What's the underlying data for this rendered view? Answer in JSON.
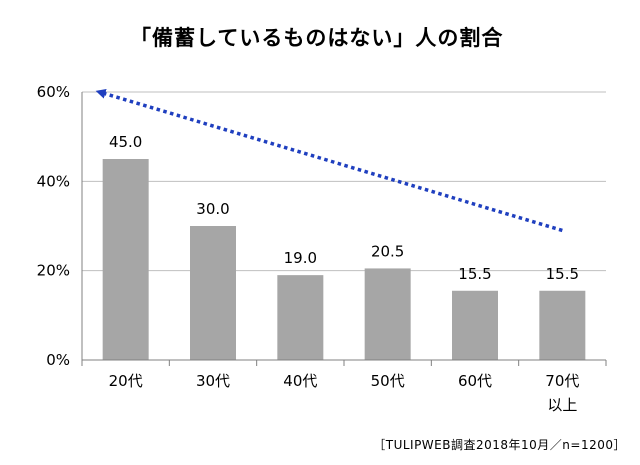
{
  "chart_data": {
    "type": "bar",
    "title": "「備蓄しているものはない」人の割合",
    "source": "［TULIPWEB調査2018年10月／n=1200］",
    "categories": [
      [
        "20代"
      ],
      [
        "30代"
      ],
      [
        "40代"
      ],
      [
        "50代"
      ],
      [
        "60代"
      ],
      [
        "70代",
        "以上"
      ]
    ],
    "values": [
      45.0,
      30.0,
      19.0,
      20.5,
      15.5,
      15.5
    ],
    "value_labels": [
      "45.0",
      "30.0",
      "19.0",
      "20.5",
      "15.5",
      "15.5"
    ],
    "ylim": [
      0,
      60
    ],
    "yticks": [
      0,
      20,
      40,
      60
    ],
    "ytick_labels": [
      "0%",
      "20%",
      "40%",
      "60%"
    ],
    "grid": true,
    "bar_color": "#a6a6a6",
    "grid_color": "#bfbfbf",
    "annotation": {
      "type": "dashed-arrow",
      "color": "#1f3fbf",
      "from": {
        "category_index": 5.5,
        "value": 29
      },
      "to": {
        "category_index": 0.2,
        "value": 60
      }
    }
  }
}
